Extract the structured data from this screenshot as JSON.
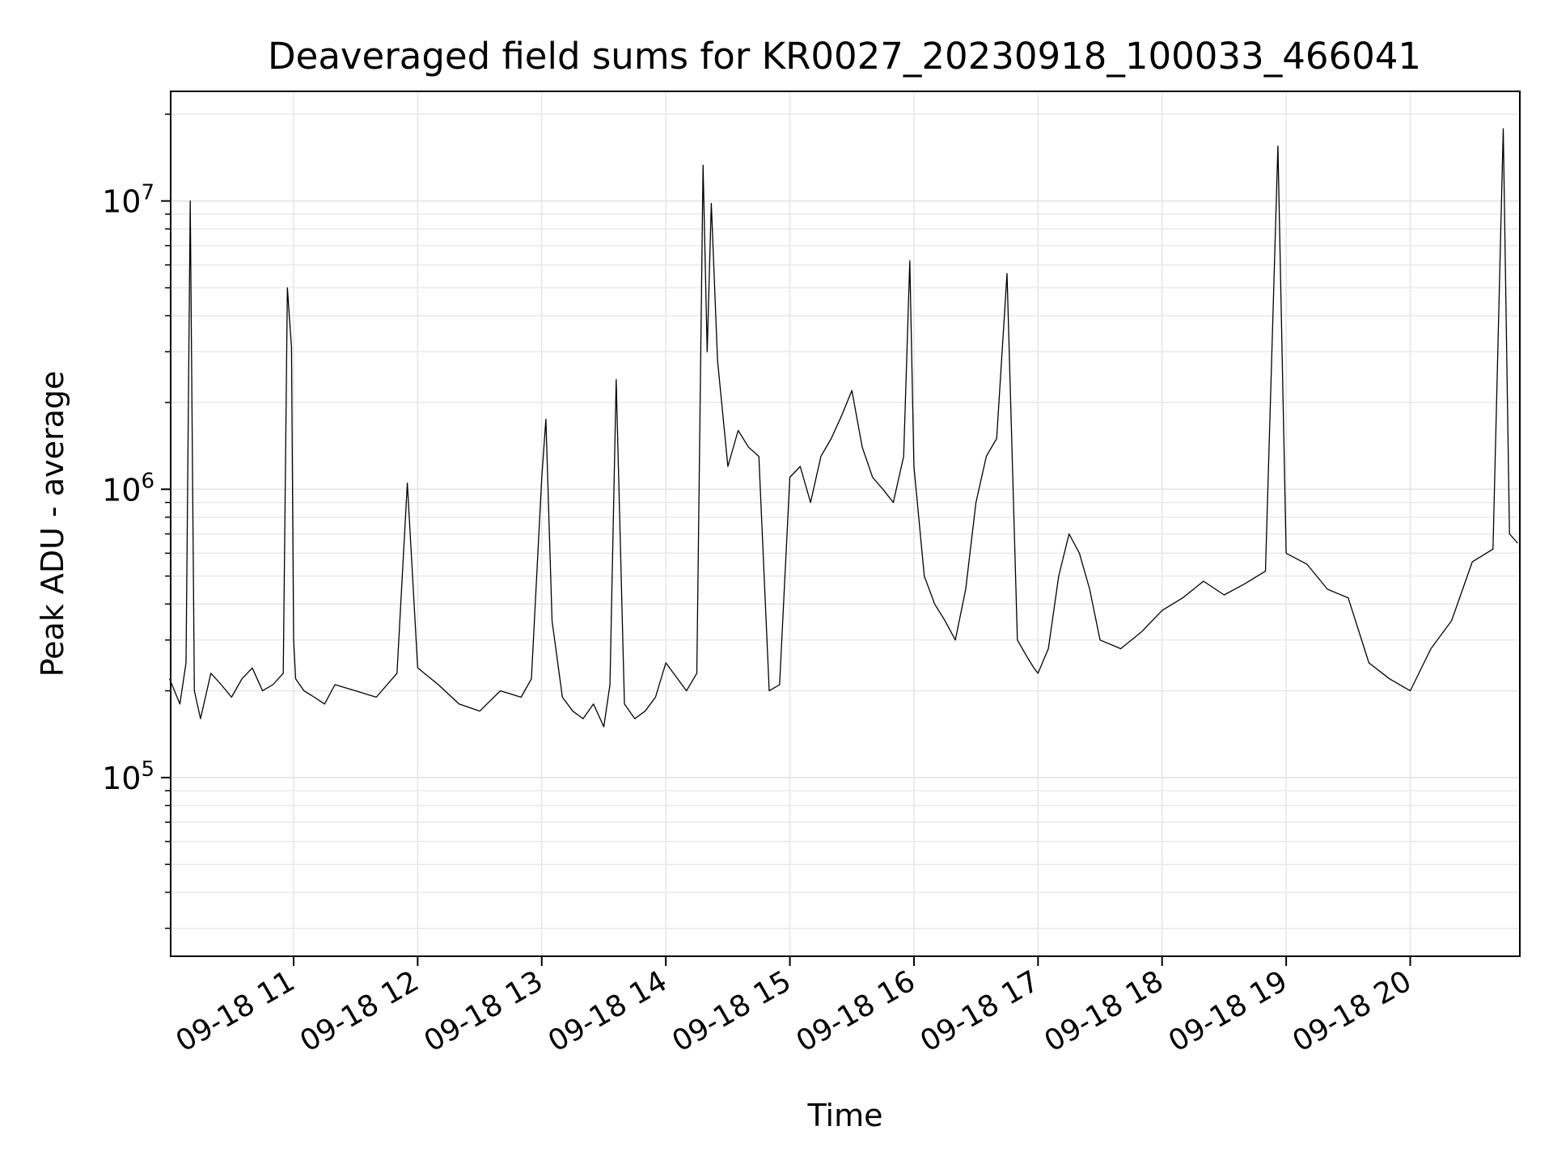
{
  "chart_data": {
    "type": "line",
    "title": "Deaveraged field sums for KR0027_20230918_100033_466041",
    "xlabel": "Time",
    "ylabel": "Peak ADU - average",
    "yscale": "log",
    "ylim": [
      24000,
      24000000
    ],
    "xlim": [
      "2023-09-18 10:00:33",
      "2023-09-18 20:53:00"
    ],
    "grid": true,
    "line_color": "#000000",
    "grid_color": "#e6e6e6",
    "x_tick_labels": [
      "09-18 11",
      "09-18 12",
      "09-18 13",
      "09-18 14",
      "09-18 15",
      "09-18 16",
      "09-18 17",
      "09-18 18",
      "09-18 19",
      "09-18 20"
    ],
    "x_ticks": [
      "2023-09-18 11:00",
      "2023-09-18 12:00",
      "2023-09-18 13:00",
      "2023-09-18 14:00",
      "2023-09-18 15:00",
      "2023-09-18 16:00",
      "2023-09-18 17:00",
      "2023-09-18 18:00",
      "2023-09-18 19:00",
      "2023-09-18 20:00"
    ],
    "y_ticks": [
      {
        "value": 100000,
        "base": "10",
        "exp": "5"
      },
      {
        "value": 1000000,
        "base": "10",
        "exp": "6"
      },
      {
        "value": 10000000,
        "base": "10",
        "exp": "7"
      }
    ],
    "series": [
      {
        "x": [
          "2023-09-18 10:00",
          "2023-09-18 10:05",
          "2023-09-18 10:08",
          "2023-09-18 10:10",
          "2023-09-18 10:12",
          "2023-09-18 10:15",
          "2023-09-18 10:20",
          "2023-09-18 10:25",
          "2023-09-18 10:30",
          "2023-09-18 10:35",
          "2023-09-18 10:40",
          "2023-09-18 10:45",
          "2023-09-18 10:50",
          "2023-09-18 10:55",
          "2023-09-18 10:57",
          "2023-09-18 10:59",
          "2023-09-18 11:00",
          "2023-09-18 11:01",
          "2023-09-18 11:05",
          "2023-09-18 11:10",
          "2023-09-18 11:15",
          "2023-09-18 11:20",
          "2023-09-18 11:30",
          "2023-09-18 11:40",
          "2023-09-18 11:50",
          "2023-09-18 11:55",
          "2023-09-18 12:00",
          "2023-09-18 12:10",
          "2023-09-18 12:20",
          "2023-09-18 12:30",
          "2023-09-18 12:40",
          "2023-09-18 12:50",
          "2023-09-18 12:55",
          "2023-09-18 13:00",
          "2023-09-18 13:02",
          "2023-09-18 13:05",
          "2023-09-18 13:10",
          "2023-09-18 13:15",
          "2023-09-18 13:20",
          "2023-09-18 13:25",
          "2023-09-18 13:30",
          "2023-09-18 13:33",
          "2023-09-18 13:36",
          "2023-09-18 13:40",
          "2023-09-18 13:45",
          "2023-09-18 13:50",
          "2023-09-18 13:55",
          "2023-09-18 14:00",
          "2023-09-18 14:10",
          "2023-09-18 14:15",
          "2023-09-18 14:18",
          "2023-09-18 14:20",
          "2023-09-18 14:22",
          "2023-09-18 14:25",
          "2023-09-18 14:30",
          "2023-09-18 14:35",
          "2023-09-18 14:40",
          "2023-09-18 14:45",
          "2023-09-18 14:50",
          "2023-09-18 14:55",
          "2023-09-18 15:00",
          "2023-09-18 15:05",
          "2023-09-18 15:10",
          "2023-09-18 15:15",
          "2023-09-18 15:20",
          "2023-09-18 15:25",
          "2023-09-18 15:30",
          "2023-09-18 15:35",
          "2023-09-18 15:40",
          "2023-09-18 15:45",
          "2023-09-18 15:50",
          "2023-09-18 15:55",
          "2023-09-18 15:58",
          "2023-09-18 16:00",
          "2023-09-18 16:05",
          "2023-09-18 16:10",
          "2023-09-18 16:15",
          "2023-09-18 16:20",
          "2023-09-18 16:25",
          "2023-09-18 16:30",
          "2023-09-18 16:35",
          "2023-09-18 16:40",
          "2023-09-18 16:45",
          "2023-09-18 16:50",
          "2023-09-18 16:55",
          "2023-09-18 16:58",
          "2023-09-18 17:00",
          "2023-09-18 17:05",
          "2023-09-18 17:10",
          "2023-09-18 17:15",
          "2023-09-18 17:20",
          "2023-09-18 17:25",
          "2023-09-18 17:30",
          "2023-09-18 17:40",
          "2023-09-18 17:50",
          "2023-09-18 18:00",
          "2023-09-18 18:10",
          "2023-09-18 18:20",
          "2023-09-18 18:30",
          "2023-09-18 18:40",
          "2023-09-18 18:50",
          "2023-09-18 18:56",
          "2023-09-18 19:00",
          "2023-09-18 19:10",
          "2023-09-18 19:20",
          "2023-09-18 19:30",
          "2023-09-18 19:40",
          "2023-09-18 19:50",
          "2023-09-18 20:00",
          "2023-09-18 20:10",
          "2023-09-18 20:20",
          "2023-09-18 20:30",
          "2023-09-18 20:40",
          "2023-09-18 20:45",
          "2023-09-18 20:48",
          "2023-09-18 20:52"
        ],
        "y": [
          220000,
          180000,
          250000,
          10000000,
          200000,
          160000,
          230000,
          210000,
          190000,
          220000,
          240000,
          200000,
          210000,
          230000,
          5000000,
          3100000,
          300000,
          220000,
          200000,
          190000,
          180000,
          210000,
          200000,
          190000,
          230000,
          1050000,
          240000,
          210000,
          180000,
          170000,
          200000,
          190000,
          220000,
          1100000,
          1750000,
          350000,
          190000,
          170000,
          160000,
          180000,
          150000,
          210000,
          2400000,
          180000,
          160000,
          170000,
          190000,
          250000,
          200000,
          230000,
          13300000,
          3000000,
          9800000,
          2800000,
          1200000,
          1600000,
          1400000,
          1300000,
          200000,
          210000,
          1100000,
          1200000,
          900000,
          1300000,
          1500000,
          1800000,
          2200000,
          1400000,
          1100000,
          1000000,
          900000,
          1300000,
          6200000,
          1200000,
          500000,
          400000,
          350000,
          300000,
          450000,
          900000,
          1300000,
          1500000,
          5600000,
          300000,
          260000,
          240000,
          230000,
          280000,
          500000,
          700000,
          600000,
          450000,
          300000,
          280000,
          320000,
          380000,
          420000,
          480000,
          430000,
          470000,
          520000,
          15500000,
          600000,
          550000,
          450000,
          420000,
          250000,
          220000,
          200000,
          280000,
          350000,
          560000,
          620000,
          17800000,
          700000,
          650000
        ]
      }
    ]
  }
}
